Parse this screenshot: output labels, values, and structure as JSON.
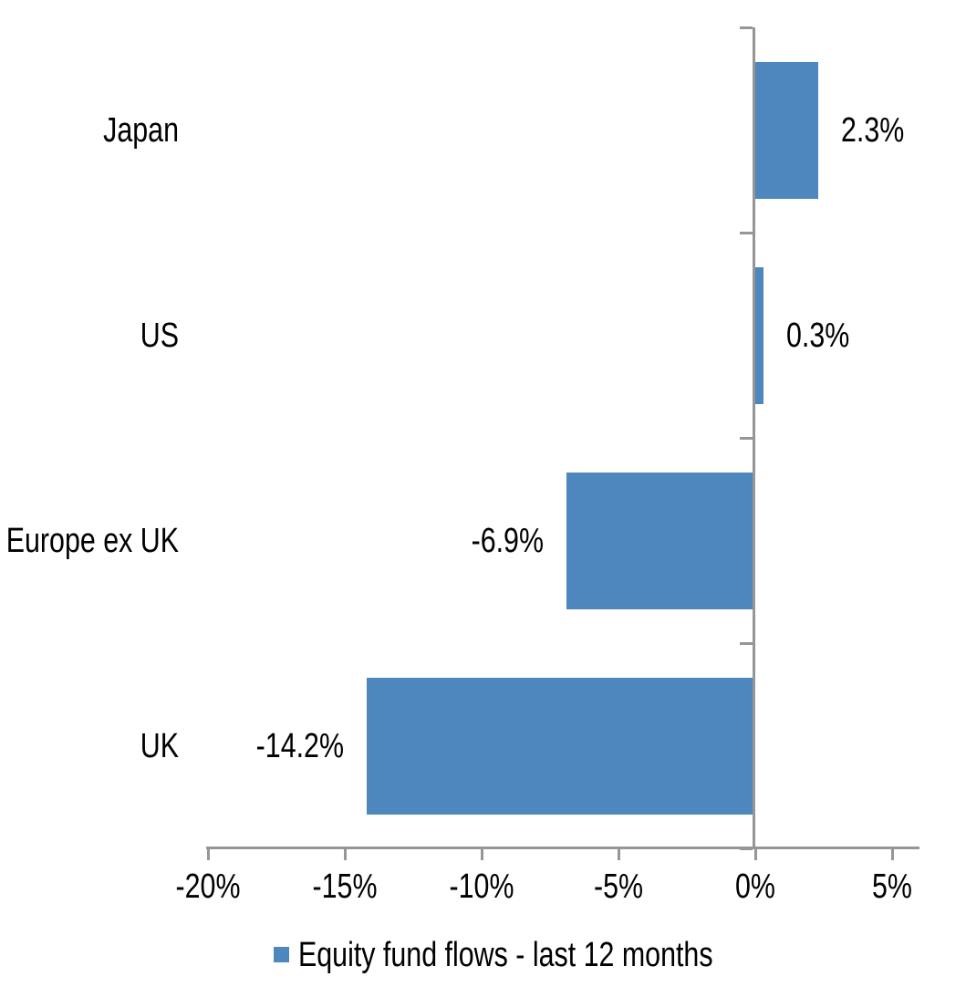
{
  "chart_data": {
    "type": "bar",
    "orientation": "horizontal",
    "title": "",
    "categories": [
      "Japan",
      "US",
      "Europe ex UK",
      "UK"
    ],
    "series": [
      {
        "name": "Equity fund flows - last 12 months",
        "values": [
          2.3,
          0.3,
          -6.9,
          -14.2
        ],
        "value_labels": [
          "2.3%",
          "0.3%",
          "-6.9%",
          "-14.2%"
        ]
      }
    ],
    "xlabel": "",
    "ylabel": "",
    "xlim": [
      -20,
      6
    ],
    "x_ticks": [
      -20,
      -15,
      -10,
      -5,
      0,
      5
    ],
    "x_tick_labels": [
      "-20%",
      "-15%",
      "-10%",
      "-5%",
      "0%",
      "5%"
    ],
    "grid": false,
    "legend_position": "bottom-center",
    "legend_label": "Equity fund flows - last 12 months",
    "colors": {
      "bar": "#4E87BE",
      "axis": "#969696",
      "text": "#000000",
      "background": "#FFFFFF"
    }
  }
}
